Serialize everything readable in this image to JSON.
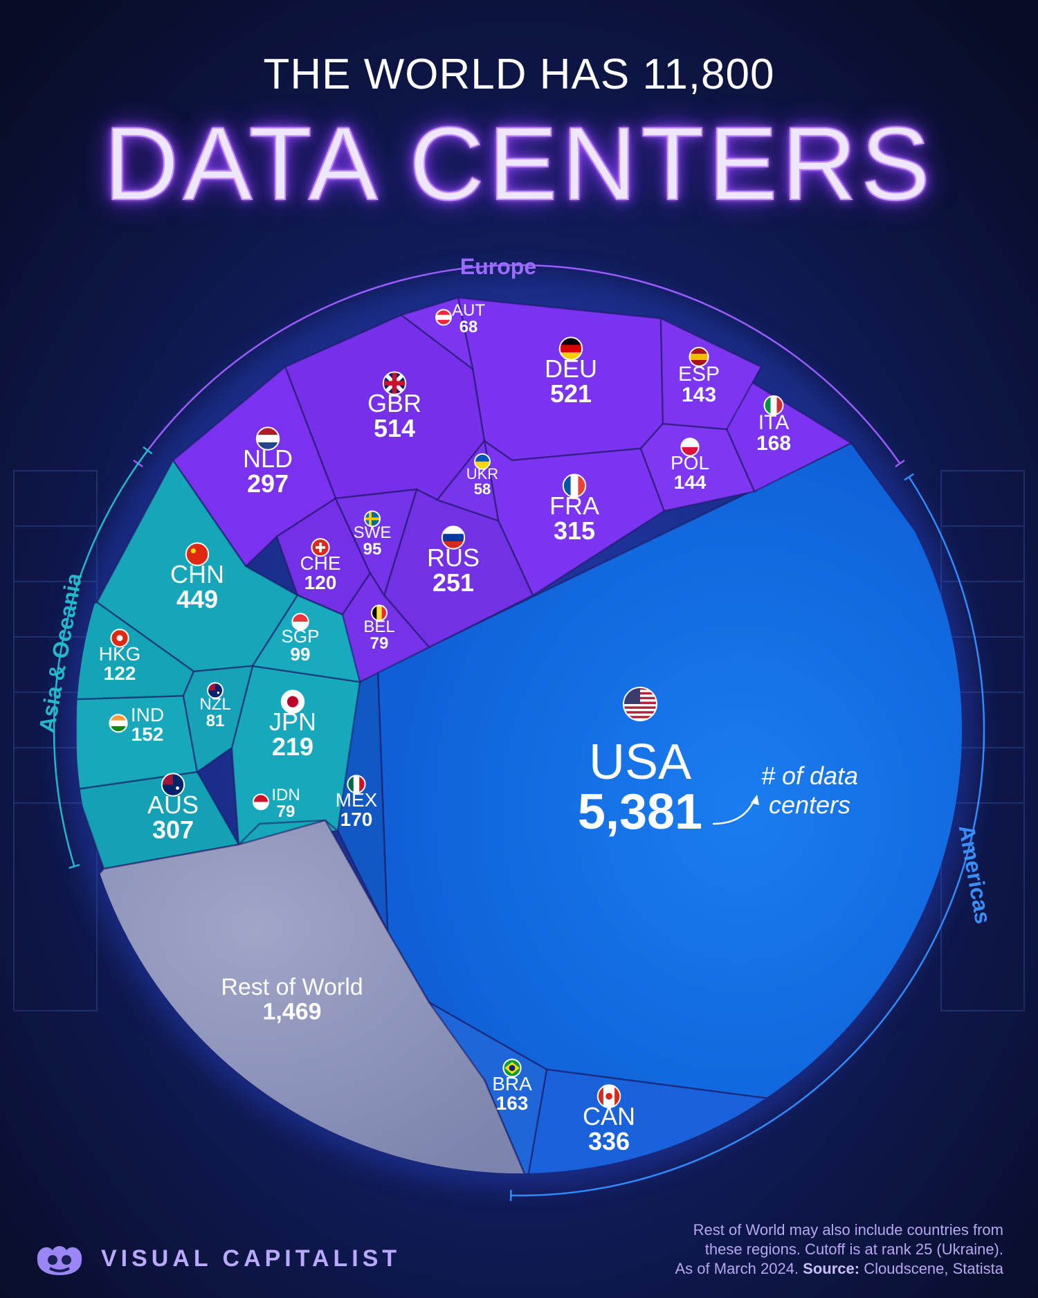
{
  "header": {
    "title_top": "THE WORLD HAS 11,800",
    "title_main": "DATA CENTERS"
  },
  "footer": {
    "brand": "VISUAL CAPITALIST",
    "note_line1": "Rest of World may also include countries from",
    "note_line2": "these regions. Cutoff is at rank 25 (Ukraine).",
    "note_line3_prefix": "As of March 2024.",
    "note_source_label": "Source:",
    "note_source": "Cloudscene, Statista"
  },
  "annotation": {
    "line1": "# of data",
    "line2": "centers"
  },
  "colors": {
    "europe": "#7b2ff0",
    "asia": "#14a3b8",
    "americas": "#1670e8",
    "rest": "#8e94b8",
    "background": "#0b1030"
  },
  "chart_data": {
    "type": "voronoi-treemap",
    "total": 11800,
    "regions": [
      {
        "name": "Europe",
        "color": "#7b2ff0"
      },
      {
        "name": "Asia & Oceania",
        "color": "#14a3b8"
      },
      {
        "name": "Americas",
        "color": "#1670e8"
      }
    ],
    "cells": [
      {
        "code": "USA",
        "value": 5381,
        "value_label": "5,381",
        "region": "Americas",
        "flag": "us-flag-icon"
      },
      {
        "code": "CAN",
        "value": 336,
        "value_label": "336",
        "region": "Americas",
        "flag": "canada-flag-icon"
      },
      {
        "code": "BRA",
        "value": 163,
        "value_label": "163",
        "region": "Americas",
        "flag": "brazil-flag-icon"
      },
      {
        "code": "MEX",
        "value": 170,
        "value_label": "170",
        "region": "Americas",
        "flag": "mexico-flag-icon"
      },
      {
        "code": "DEU",
        "value": 521,
        "value_label": "521",
        "region": "Europe",
        "flag": "germany-flag-icon"
      },
      {
        "code": "GBR",
        "value": 514,
        "value_label": "514",
        "region": "Europe",
        "flag": "uk-flag-icon"
      },
      {
        "code": "FRA",
        "value": 315,
        "value_label": "315",
        "region": "Europe",
        "flag": "france-flag-icon"
      },
      {
        "code": "NLD",
        "value": 297,
        "value_label": "297",
        "region": "Europe",
        "flag": "netherlands-flag-icon"
      },
      {
        "code": "RUS",
        "value": 251,
        "value_label": "251",
        "region": "Europe",
        "flag": "russia-flag-icon"
      },
      {
        "code": "ITA",
        "value": 168,
        "value_label": "168",
        "region": "Europe",
        "flag": "italy-flag-icon"
      },
      {
        "code": "POL",
        "value": 144,
        "value_label": "144",
        "region": "Europe",
        "flag": "poland-flag-icon"
      },
      {
        "code": "ESP",
        "value": 143,
        "value_label": "143",
        "region": "Europe",
        "flag": "spain-flag-icon"
      },
      {
        "code": "CHE",
        "value": 120,
        "value_label": "120",
        "region": "Europe",
        "flag": "switzerland-flag-icon"
      },
      {
        "code": "SWE",
        "value": 95,
        "value_label": "95",
        "region": "Europe",
        "flag": "sweden-flag-icon"
      },
      {
        "code": "BEL",
        "value": 79,
        "value_label": "79",
        "region": "Europe",
        "flag": "belgium-flag-icon"
      },
      {
        "code": "AUT",
        "value": 68,
        "value_label": "68",
        "region": "Europe",
        "flag": "austria-flag-icon"
      },
      {
        "code": "UKR",
        "value": 58,
        "value_label": "58",
        "region": "Europe",
        "flag": "ukraine-flag-icon"
      },
      {
        "code": "CHN",
        "value": 449,
        "value_label": "449",
        "region": "Asia & Oceania",
        "flag": "china-flag-icon"
      },
      {
        "code": "AUS",
        "value": 307,
        "value_label": "307",
        "region": "Asia & Oceania",
        "flag": "australia-flag-icon"
      },
      {
        "code": "JPN",
        "value": 219,
        "value_label": "219",
        "region": "Asia & Oceania",
        "flag": "japan-flag-icon"
      },
      {
        "code": "IND",
        "value": 152,
        "value_label": "152",
        "region": "Asia & Oceania",
        "flag": "india-flag-icon"
      },
      {
        "code": "HKG",
        "value": 122,
        "value_label": "122",
        "region": "Asia & Oceania",
        "flag": "hong-kong-flag-icon"
      },
      {
        "code": "SGP",
        "value": 99,
        "value_label": "99",
        "region": "Asia & Oceania",
        "flag": "singapore-flag-icon"
      },
      {
        "code": "NZL",
        "value": 81,
        "value_label": "81",
        "region": "Asia & Oceania",
        "flag": "new-zealand-flag-icon"
      },
      {
        "code": "IDN",
        "value": 79,
        "value_label": "79",
        "region": "Asia & Oceania",
        "flag": "indonesia-flag-icon"
      },
      {
        "code": "Rest of World",
        "value": 1469,
        "value_label": "1,469",
        "region": "Rest",
        "flag": ""
      }
    ]
  }
}
